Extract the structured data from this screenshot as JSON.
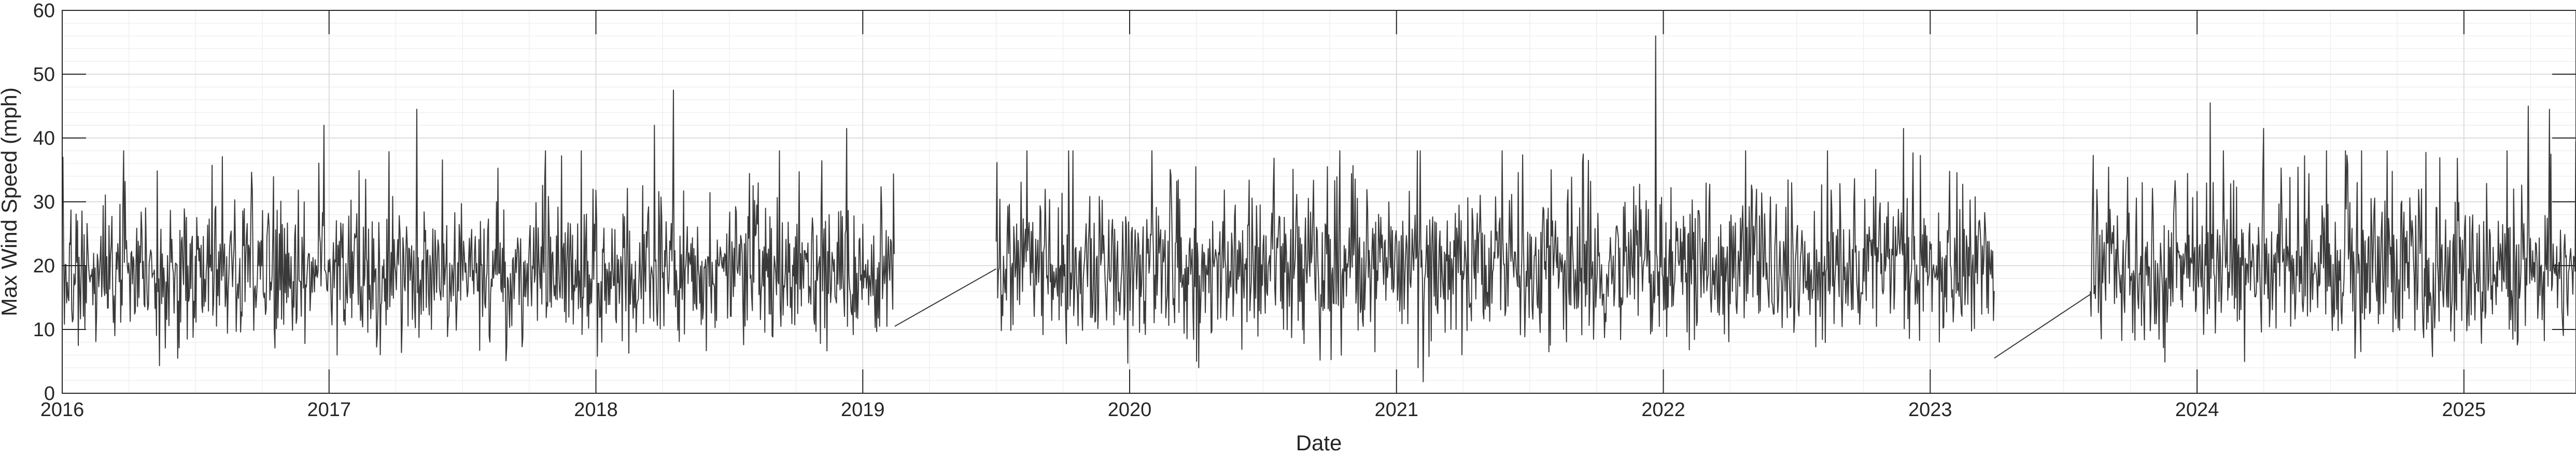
{
  "chart_data": {
    "type": "line",
    "title": "",
    "xlabel": "Date",
    "ylabel": "Max Wind Speed (mph)",
    "xlim": [
      2016.0,
      2025.42
    ],
    "ylim": [
      0,
      60
    ],
    "x_ticks": [
      2016,
      2017,
      2018,
      2019,
      2020,
      2021,
      2022,
      2023,
      2024,
      2025
    ],
    "x_tick_labels": [
      "2016",
      "2017",
      "2018",
      "2019",
      "2020",
      "2021",
      "2022",
      "2023",
      "2024",
      "2025"
    ],
    "y_ticks": [
      0,
      10,
      20,
      30,
      40,
      50,
      60
    ],
    "y_tick_labels": [
      "0",
      "10",
      "20",
      "30",
      "40",
      "50",
      "60"
    ],
    "grid": true,
    "minor_grid": true,
    "line_color": "#3a3a3a",
    "series": [
      {
        "name": "Max Wind Speed",
        "segments": [
          {
            "start": 2016.0,
            "end": 2019.12,
            "mean": 18.5,
            "spread": 5.5
          },
          {
            "start": 2019.5,
            "end": 2023.24,
            "mean": 19.5,
            "spread": 5.8
          },
          {
            "start": 2023.6,
            "end": 2025.42,
            "mean": 19.5,
            "spread": 5.8
          }
        ],
        "gap_connectors": [
          {
            "x": [
              2019.12,
              2019.5
            ],
            "y": [
              10.5,
              19.5
            ]
          },
          {
            "x": [
              2023.24,
              2023.6
            ],
            "y": [
              5.5,
              15.5
            ]
          }
        ],
        "notable_points": [
          {
            "x": 2016.0,
            "y": 33.5
          },
          {
            "x": 2016.06,
            "y": 7.5
          },
          {
            "x": 2016.98,
            "y": 42
          },
          {
            "x": 2017.03,
            "y": 6
          },
          {
            "x": 2017.33,
            "y": 44.5
          },
          {
            "x": 2018.29,
            "y": 47.5
          },
          {
            "x": 2018.22,
            "y": 42
          },
          {
            "x": 2018.94,
            "y": 41.5
          },
          {
            "x": 2020.92,
            "y": 6.5
          },
          {
            "x": 2021.1,
            "y": 1.8
          },
          {
            "x": 2021.97,
            "y": 56
          },
          {
            "x": 2021.72,
            "y": 36.5
          },
          {
            "x": 2021.57,
            "y": 6.5
          },
          {
            "x": 2022.9,
            "y": 41.5
          },
          {
            "x": 2024.05,
            "y": 45.5
          },
          {
            "x": 2024.25,
            "y": 41.5
          },
          {
            "x": 2025.24,
            "y": 45
          },
          {
            "x": 2025.32,
            "y": 44.5
          },
          {
            "x": 2025.42,
            "y": 39.5
          }
        ]
      }
    ]
  }
}
